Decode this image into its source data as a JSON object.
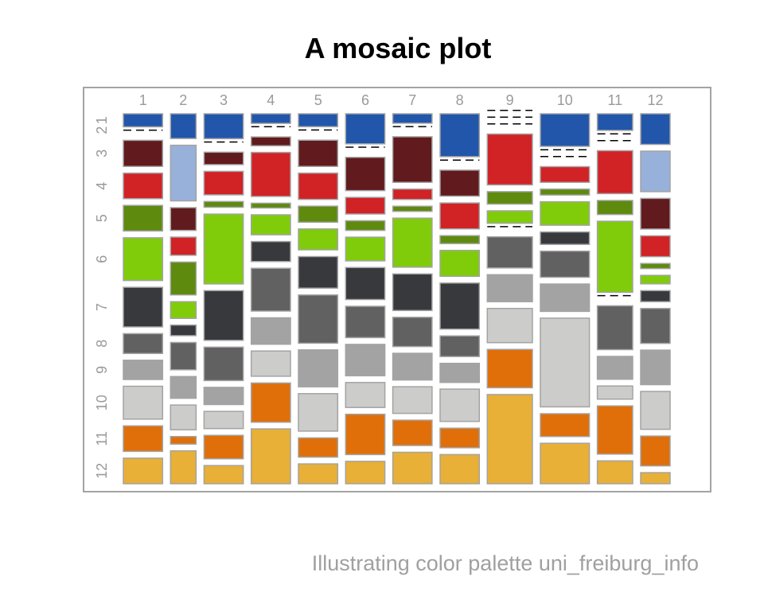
{
  "chart_data": {
    "type": "mosaic",
    "title": "A mosaic plot",
    "caption": "Illustrating color palette uni_freiburg_info",
    "x_categories": [
      "1",
      "2",
      "3",
      "4",
      "5",
      "6",
      "7",
      "8",
      "9",
      "10",
      "11",
      "12"
    ],
    "y_categories": [
      "1",
      "2",
      "3",
      "4",
      "5",
      "6",
      "7",
      "8",
      "9",
      "10",
      "11",
      "12"
    ],
    "column_widths": [
      1.0,
      0.65,
      1.0,
      1.0,
      1.0,
      1.0,
      1.0,
      1.0,
      1.15,
      1.25,
      0.9,
      0.75
    ],
    "cells": [
      [
        2.5,
        4.9,
        5.2,
        2.4,
        2.4,
        4.7,
        2.2,
        8.1,
        0,
        5.0,
        1.9,
        7.2
      ],
      [
        0,
        11.0,
        0,
        0,
        0,
        0,
        0,
        0,
        0,
        0,
        0,
        9.5
      ],
      [
        5.0,
        4.5,
        2.6,
        2.2,
        4.9,
        5.2,
        10.6,
        4.9,
        0,
        0,
        0,
        7.2
      ],
      [
        4.9,
        3.6,
        4.9,
        11.0,
        4.9,
        2.6,
        2.4,
        4.9,
        4.9,
        2.4,
        4.9,
        4.9
      ],
      [
        4.9,
        6.5,
        1.2,
        1.2,
        3.0,
        1.5,
        1.2,
        1.5,
        1.2,
        0.9,
        1.6,
        1.2
      ],
      [
        8.2,
        3.3,
        14.6,
        5.0,
        3.9,
        3.7,
        11.4,
        4.9,
        1.2,
        3.6,
        8.1,
        2.0
      ],
      [
        7.6,
        2.1,
        10.4,
        5.0,
        5.9,
        5.0,
        8.5,
        8.7,
        0,
        1.9,
        0,
        2.6
      ],
      [
        3.8,
        5.4,
        7.0,
        10.7,
        9.0,
        4.9,
        6.8,
        3.9,
        3.0,
        4.0,
        5.0,
        8.2
      ],
      [
        3.7,
        4.3,
        3.6,
        6.6,
        6.9,
        4.9,
        6.2,
        3.6,
        2.6,
        4.2,
        2.6,
        8.1
      ],
      [
        6.3,
        4.9,
        3.6,
        6.3,
        7.0,
        3.9,
        6.2,
        6.1,
        3.3,
        13.6,
        1.5,
        8.9
      ],
      [
        4.9,
        1.5,
        4.9,
        9.8,
        3.6,
        6.3,
        5.9,
        3.7,
        3.7,
        3.5,
        5.5,
        7.0
      ],
      [
        4.9,
        6.5,
        3.8,
        13.7,
        3.7,
        3.5,
        7.3,
        5.5,
        8.6,
        6.2,
        2.6,
        2.6
      ]
    ],
    "colors": [
      "#2156ab",
      "#97b1da",
      "#611a1d",
      "#d12226",
      "#5e8a0e",
      "#80cc0b",
      "#38393d",
      "#616161",
      "#a3a3a3",
      "#cccdcb",
      "#e06f0a",
      "#e8b036"
    ],
    "empty_cell_marker": "dashed line",
    "box": true,
    "grid": false
  }
}
